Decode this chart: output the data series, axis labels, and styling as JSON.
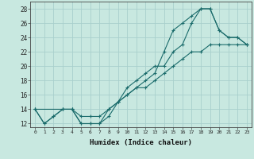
{
  "xlabel": "Humidex (Indice chaleur)",
  "bg_color": "#c8e8e0",
  "grid_color": "#a8d0cc",
  "line_color": "#1a6b6b",
  "xlim": [
    -0.5,
    23.5
  ],
  "ylim": [
    11.5,
    29
  ],
  "xticks": [
    0,
    1,
    2,
    3,
    4,
    5,
    6,
    7,
    8,
    9,
    10,
    11,
    12,
    13,
    14,
    15,
    16,
    17,
    18,
    19,
    20,
    21,
    22,
    23
  ],
  "yticks": [
    12,
    14,
    16,
    18,
    20,
    22,
    24,
    26,
    28
  ],
  "line1_x": [
    0,
    1,
    2,
    3,
    4,
    5,
    6,
    7,
    8,
    9,
    10,
    11,
    12,
    13,
    14,
    15,
    16,
    17,
    18,
    19,
    20,
    21,
    22,
    23
  ],
  "line1_y": [
    14,
    12,
    13,
    14,
    14,
    12,
    12,
    12,
    13,
    15,
    16,
    17,
    18,
    19,
    22,
    25,
    26,
    27,
    28,
    28,
    25,
    24,
    24,
    23
  ],
  "line2_x": [
    0,
    1,
    2,
    3,
    4,
    5,
    6,
    7,
    8,
    9,
    10,
    11,
    12,
    13,
    14,
    15,
    16,
    17,
    18,
    19,
    20,
    21,
    22,
    23
  ],
  "line2_y": [
    14,
    12,
    13,
    14,
    14,
    12,
    12,
    12,
    14,
    15,
    17,
    18,
    19,
    20,
    20,
    22,
    23,
    26,
    28,
    28,
    25,
    24,
    24,
    23
  ],
  "line3_x": [
    0,
    3,
    4,
    5,
    6,
    7,
    8,
    9,
    10,
    11,
    12,
    13,
    14,
    15,
    16,
    17,
    18,
    19,
    20,
    21,
    22,
    23
  ],
  "line3_y": [
    14,
    14,
    14,
    13,
    13,
    13,
    14,
    15,
    16,
    17,
    17,
    18,
    19,
    20,
    21,
    22,
    22,
    23,
    23,
    23,
    23,
    23
  ]
}
